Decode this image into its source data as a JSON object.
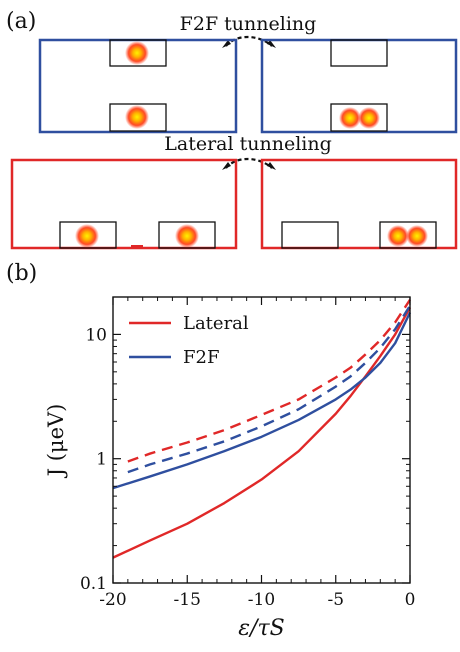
{
  "panel_a": {
    "label": "(a)",
    "f2f_caption": "F2F tunneling",
    "lateral_caption": "Lateral tunneling",
    "colors": {
      "f2f": "#2f4f9f",
      "lateral": "#e02828",
      "dot_core": "#ffe000",
      "dot_edge": "#ff2000"
    }
  },
  "panel_b": {
    "label": "(b)"
  },
  "chart_data": {
    "type": "line",
    "title": "",
    "xlabel": "ε/τS",
    "ylabel": "J (μeV)",
    "xlim": [
      -20,
      0
    ],
    "ylim": [
      0.1,
      20
    ],
    "yscale": "log",
    "x_ticks": [
      -20,
      -15,
      -10,
      -5,
      0
    ],
    "x_tick_labels": [
      "-20",
      "-15",
      "-10",
      "-5",
      "0"
    ],
    "y_ticks": [
      0.1,
      1,
      10
    ],
    "y_tick_labels": [
      "0.1",
      "1",
      "10"
    ],
    "grid": false,
    "legend_position": "top-left",
    "series": [
      {
        "name": "Lateral",
        "color": "#e02828",
        "dash": "solid",
        "x": [
          -20,
          -17.5,
          -15,
          -12.5,
          -10,
          -7.5,
          -5,
          -4,
          -3,
          -2,
          -1,
          0
        ],
        "y": [
          0.16,
          0.22,
          0.3,
          0.44,
          0.68,
          1.15,
          2.3,
          3.2,
          4.6,
          6.7,
          10.0,
          16.5
        ]
      },
      {
        "name": "F2F",
        "color": "#2f4f9f",
        "dash": "solid",
        "x": [
          -20,
          -17.5,
          -15,
          -12.5,
          -10,
          -7.5,
          -5,
          -4,
          -3,
          -2,
          -1,
          0
        ],
        "y": [
          0.58,
          0.72,
          0.9,
          1.15,
          1.5,
          2.05,
          3.0,
          3.6,
          4.5,
          5.9,
          8.5,
          15.0
        ]
      },
      {
        "name": "",
        "color": "#e02828",
        "dash": "dashed",
        "x": [
          -19,
          -17.5,
          -15,
          -12.5,
          -10,
          -7.5,
          -5,
          -4,
          -3,
          -2,
          -1,
          0
        ],
        "y": [
          0.95,
          1.1,
          1.35,
          1.7,
          2.25,
          3.0,
          4.5,
          5.4,
          6.9,
          9.0,
          12.5,
          19.0
        ]
      },
      {
        "name": "",
        "color": "#2f4f9f",
        "dash": "dashed",
        "x": [
          -19,
          -17.5,
          -15,
          -12.5,
          -10,
          -7.5,
          -5,
          -4,
          -3,
          -2,
          -1,
          0
        ],
        "y": [
          0.78,
          0.9,
          1.1,
          1.38,
          1.82,
          2.5,
          3.8,
          4.6,
          5.9,
          7.8,
          11.0,
          17.0
        ]
      }
    ]
  }
}
